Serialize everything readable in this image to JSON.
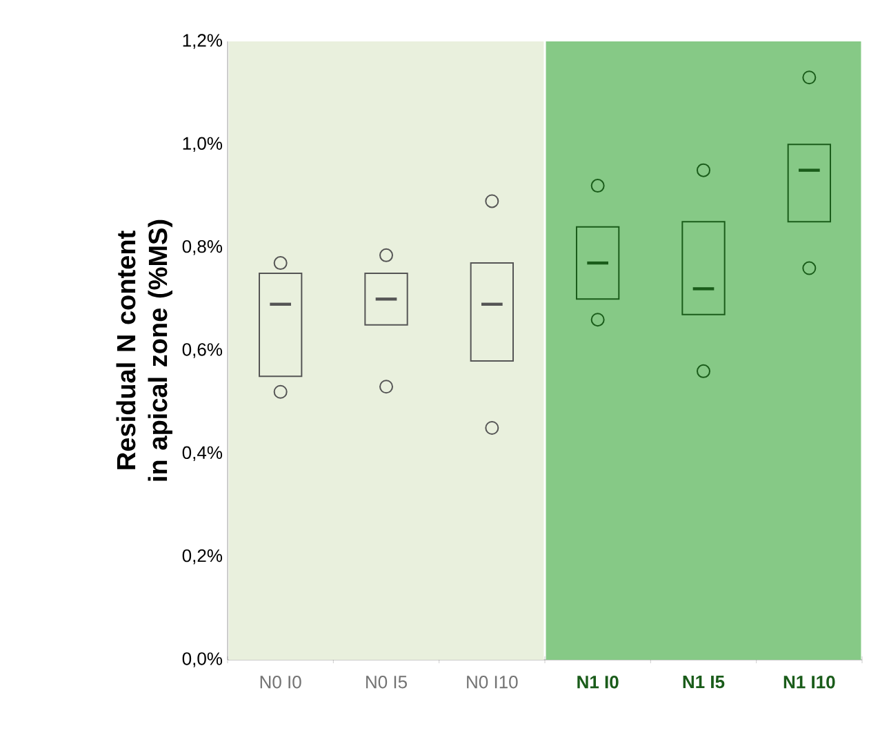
{
  "chart_data": {
    "type": "box",
    "ylabel": "Residual N content in apical zone (%MS)",
    "categories": [
      "N0 I0",
      "N0 I5",
      "N0 I10",
      "N1 I0",
      "N1 I5",
      "N1 I10"
    ],
    "boxes": [
      {
        "low": 0.55,
        "q1": 0.55,
        "median": 0.69,
        "q3": 0.75,
        "high": 0.75,
        "outliers": [
          0.52,
          0.77
        ]
      },
      {
        "low": 0.65,
        "q1": 0.65,
        "median": 0.7,
        "q3": 0.75,
        "high": 0.75,
        "outliers": [
          0.53,
          0.785
        ]
      },
      {
        "low": 0.58,
        "q1": 0.58,
        "median": 0.69,
        "q3": 0.77,
        "high": 0.77,
        "outliers": [
          0.45,
          0.89
        ]
      },
      {
        "low": 0.7,
        "q1": 0.7,
        "median": 0.77,
        "q3": 0.84,
        "high": 0.84,
        "outliers": [
          0.66,
          0.92
        ]
      },
      {
        "low": 0.67,
        "q1": 0.67,
        "median": 0.72,
        "q3": 0.85,
        "high": 0.85,
        "outliers": [
          0.56,
          0.95
        ]
      },
      {
        "low": 0.85,
        "q1": 0.85,
        "median": 0.95,
        "q3": 1.0,
        "high": 1.0,
        "outliers": [
          0.76,
          1.13
        ]
      }
    ],
    "colors": [
      "#555555",
      "#555555",
      "#555555",
      "#1a5c1a",
      "#1a5c1a",
      "#1a5c1a"
    ],
    "ylim": [
      0,
      1.2
    ],
    "yticks": [
      {
        "value": 0,
        "label": "0,0%"
      },
      {
        "value": 0.2,
        "label": "0,2%"
      },
      {
        "value": 0.4,
        "label": "0,4%"
      },
      {
        "value": 0.6,
        "label": "0,6%"
      },
      {
        "value": 0.8,
        "label": "0,8%"
      },
      {
        "value": 1.0,
        "label": "1,0%"
      },
      {
        "value": 1.2,
        "label": "1,2%"
      }
    ],
    "bands": [
      {
        "axis": "x",
        "from": "N0 I0",
        "to": "N0 I10",
        "color": "#e9f0dd"
      },
      {
        "axis": "x",
        "from": "N1 I0",
        "to": "N1 I10",
        "color": "#86c986"
      }
    ],
    "marker": "circle"
  }
}
